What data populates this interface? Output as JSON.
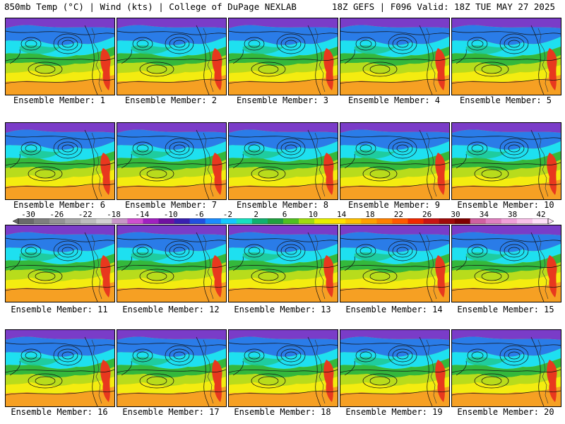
{
  "header": {
    "left": "850mb Temp (°C) | Wind (kts) | College of DuPage NEXLAB",
    "right": "18Z GEFS | F096 Valid: 18Z TUE MAY 27 2025"
  },
  "panels": [
    {
      "label": "Ensemble Member: 1"
    },
    {
      "label": "Ensemble Member: 2"
    },
    {
      "label": "Ensemble Member: 3"
    },
    {
      "label": "Ensemble Member: 4"
    },
    {
      "label": "Ensemble Member: 5"
    },
    {
      "label": "Ensemble Member: 6"
    },
    {
      "label": "Ensemble Member: 7"
    },
    {
      "label": "Ensemble Member: 8"
    },
    {
      "label": "Ensemble Member: 9"
    },
    {
      "label": "Ensemble Member: 10"
    },
    {
      "label": "Ensemble Member: 11"
    },
    {
      "label": "Ensemble Member: 12"
    },
    {
      "label": "Ensemble Member: 13"
    },
    {
      "label": "Ensemble Member: 14"
    },
    {
      "label": "Ensemble Member: 15"
    },
    {
      "label": "Ensemble Member: 16"
    },
    {
      "label": "Ensemble Member: 17"
    },
    {
      "label": "Ensemble Member: 18"
    },
    {
      "label": "Ensemble Member: 19"
    },
    {
      "label": "Ensemble Member: 20"
    }
  ],
  "colorbar": {
    "labels": [
      "-30",
      "-26",
      "-22",
      "-18",
      "-14",
      "-10",
      "-6",
      "-2",
      "2",
      "6",
      "10",
      "14",
      "18",
      "22",
      "26",
      "30",
      "34",
      "38",
      "42"
    ],
    "colors": [
      "#6a6a6a",
      "#7e7e7e",
      "#939393",
      "#a8a8a8",
      "#bdbdbd",
      "#d2d2d2",
      "#c896c8",
      "#d050d0",
      "#a020c0",
      "#7010a0",
      "#3a20b0",
      "#2050e0",
      "#1a8cff",
      "#14c8ff",
      "#18e0c0",
      "#10b070",
      "#20a040",
      "#50c020",
      "#a0dc10",
      "#e6f000",
      "#ffe000",
      "#ffc000",
      "#ffa000",
      "#ff8000",
      "#ff5a00",
      "#f02800",
      "#c81414",
      "#a00a0a",
      "#800000",
      "#d060a0",
      "#e080c0",
      "#f0a0d8",
      "#f8c0e8",
      "#ffe0f8"
    ]
  },
  "palette": {
    "purple": "#7a3cc8",
    "blue": "#2a7ce8",
    "cyan": "#1ee0f0",
    "teal": "#20c890",
    "green": "#34b83c",
    "yellowgreen": "#b8dc1c",
    "yellow": "#f4ec10",
    "gold": "#f6c41a",
    "orange": "#f6a023",
    "red": "#e8381e"
  }
}
